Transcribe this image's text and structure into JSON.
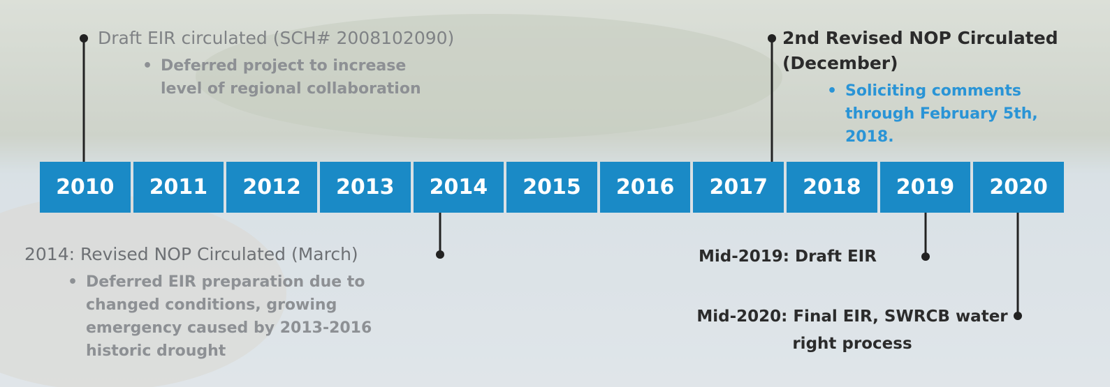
{
  "timeline": {
    "years": [
      "2010",
      "2011",
      "2012",
      "2013",
      "2014",
      "2015",
      "2016",
      "2017",
      "2018",
      "2019",
      "2020"
    ],
    "events": [
      {
        "title": "Draft EIR circulated (SCH# 2008102090)",
        "bullets": [
          "Deferred project to increase level of regional collaboration"
        ]
      },
      {
        "title": "2nd Revised NOP Circulated (December)",
        "bullets": [
          "Soliciting comments through February 5th, 2018."
        ]
      },
      {
        "title": "2014: Revised NOP Circulated (March)",
        "bullets": [
          "Deferred EIR preparation due to changed conditions, growing emergency caused by 2013-2016 historic drought"
        ]
      },
      {
        "title": "Mid-2019:  Draft EIR",
        "bullets": []
      },
      {
        "title": "Mid-2020:  Final EIR, SWRCB water right process",
        "bullets": []
      }
    ]
  }
}
